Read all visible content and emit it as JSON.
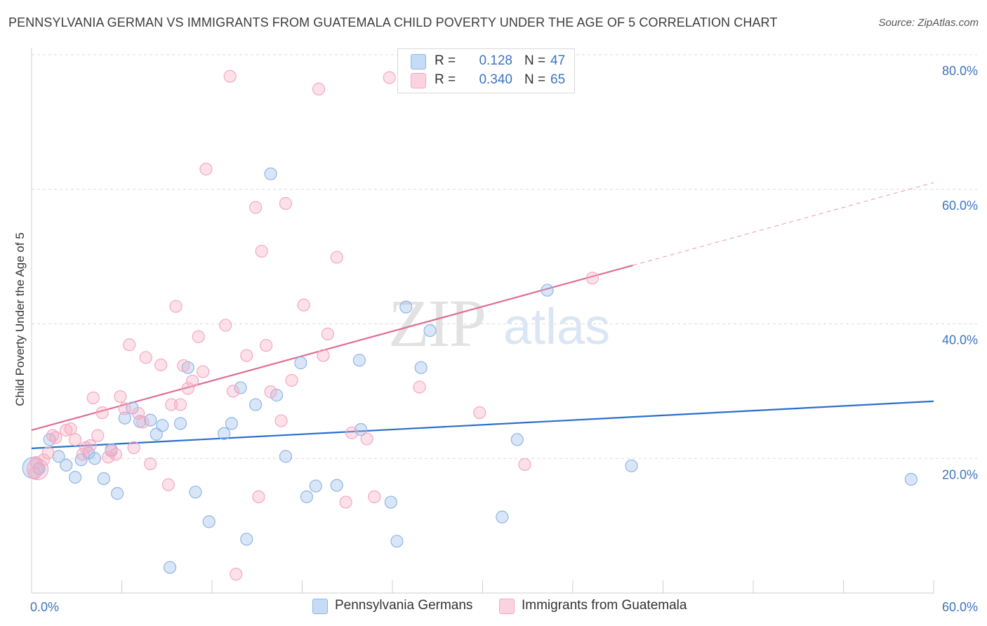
{
  "title": "PENNSYLVANIA GERMAN VS IMMIGRANTS FROM GUATEMALA CHILD POVERTY UNDER THE AGE OF 5 CORRELATION CHART",
  "source": "Source: ZipAtlas.com",
  "watermark": {
    "zip": "ZIP",
    "atlas": "atlas"
  },
  "legend": {
    "rows": [
      {
        "r_label": "R =",
        "r_value": "0.128",
        "n_label": "N =",
        "n_value": "47"
      },
      {
        "r_label": "R =",
        "r_value": "0.340",
        "n_label": "N =",
        "n_value": "65"
      }
    ]
  },
  "chart_data": {
    "type": "scatter",
    "title": "PENNSYLVANIA GERMAN VS IMMIGRANTS FROM GUATEMALA CHILD POVERTY UNDER THE AGE OF 5 CORRELATION CHART",
    "xlabel": "",
    "ylabel": "Child Poverty Under the Age of 5",
    "xlim": [
      0,
      60
    ],
    "ylim": [
      0,
      80
    ],
    "x_tick_labels": [
      "0.0%",
      "60.0%"
    ],
    "y_ticks": [
      {
        "value": 20,
        "label": "20.0%"
      },
      {
        "value": 40,
        "label": "40.0%"
      },
      {
        "value": 60,
        "label": "60.0%"
      },
      {
        "value": 80,
        "label": "80.0%"
      }
    ],
    "grid": true,
    "series": [
      {
        "name": "Pennsylvania Germans",
        "color": "#8fb6e8",
        "line_color": "#2a6fcb",
        "R": 0.128,
        "N": 47,
        "trend": {
          "x": [
            0,
            60
          ],
          "y": [
            21.5,
            28.5
          ]
        },
        "points": [
          [
            0.5,
            18.5
          ],
          [
            1.2,
            22.8
          ],
          [
            1.8,
            20.3
          ],
          [
            2.3,
            19.0
          ],
          [
            2.9,
            17.2
          ],
          [
            3.3,
            19.8
          ],
          [
            3.8,
            20.8
          ],
          [
            4.2,
            20.0
          ],
          [
            4.8,
            17.0
          ],
          [
            5.3,
            21.3
          ],
          [
            5.7,
            14.8
          ],
          [
            6.2,
            26.0
          ],
          [
            6.7,
            27.5
          ],
          [
            7.2,
            25.5
          ],
          [
            7.9,
            25.7
          ],
          [
            8.3,
            23.6
          ],
          [
            8.7,
            24.9
          ],
          [
            9.2,
            3.8
          ],
          [
            9.9,
            25.2
          ],
          [
            10.4,
            33.5
          ],
          [
            10.9,
            15.0
          ],
          [
            11.8,
            10.6
          ],
          [
            12.8,
            23.7
          ],
          [
            13.3,
            25.2
          ],
          [
            13.9,
            30.5
          ],
          [
            14.3,
            8.0
          ],
          [
            14.9,
            28.0
          ],
          [
            15.9,
            62.3
          ],
          [
            16.3,
            29.4
          ],
          [
            16.9,
            20.3
          ],
          [
            17.9,
            34.2
          ],
          [
            18.3,
            14.3
          ],
          [
            18.9,
            15.9
          ],
          [
            20.3,
            16.0
          ],
          [
            21.9,
            24.3
          ],
          [
            21.8,
            34.6
          ],
          [
            23.9,
            13.5
          ],
          [
            24.3,
            7.7
          ],
          [
            24.9,
            42.5
          ],
          [
            25.9,
            33.5
          ],
          [
            26.5,
            39.0
          ],
          [
            31.3,
            11.3
          ],
          [
            32.3,
            22.8
          ],
          [
            34.3,
            45.0
          ],
          [
            39.9,
            18.9
          ],
          [
            58.5,
            16.9
          ],
          [
            0.1,
            18.6
          ]
        ]
      },
      {
        "name": "Immigrants from Guatemala",
        "color": "#f5a8c0",
        "line_color": "#e06c94",
        "R": 0.34,
        "N": 65,
        "trend": {
          "x": [
            0,
            40
          ],
          "y": [
            24.2,
            48.7
          ]
        },
        "trend_ext": {
          "x": [
            40,
            60
          ],
          "y": [
            48.7,
            61.0
          ]
        },
        "points": [
          [
            0.3,
            19.4
          ],
          [
            0.8,
            19.8
          ],
          [
            1.1,
            20.8
          ],
          [
            1.4,
            23.4
          ],
          [
            1.6,
            23.1
          ],
          [
            2.3,
            24.2
          ],
          [
            2.6,
            24.4
          ],
          [
            2.9,
            22.8
          ],
          [
            3.4,
            20.6
          ],
          [
            3.6,
            21.6
          ],
          [
            3.9,
            21.9
          ],
          [
            4.1,
            29.0
          ],
          [
            4.4,
            23.4
          ],
          [
            4.7,
            26.8
          ],
          [
            5.1,
            20.2
          ],
          [
            5.3,
            21.1
          ],
          [
            5.6,
            20.6
          ],
          [
            5.9,
            29.2
          ],
          [
            6.2,
            27.4
          ],
          [
            6.5,
            36.9
          ],
          [
            6.8,
            21.6
          ],
          [
            7.1,
            26.7
          ],
          [
            7.4,
            25.4
          ],
          [
            7.6,
            35.0
          ],
          [
            7.9,
            19.2
          ],
          [
            8.6,
            33.9
          ],
          [
            9.1,
            16.1
          ],
          [
            9.3,
            28.0
          ],
          [
            9.6,
            42.6
          ],
          [
            9.9,
            28.0
          ],
          [
            10.1,
            33.8
          ],
          [
            10.4,
            30.4
          ],
          [
            10.7,
            31.5
          ],
          [
            11.1,
            38.1
          ],
          [
            11.4,
            32.9
          ],
          [
            11.6,
            63.0
          ],
          [
            12.9,
            39.8
          ],
          [
            13.2,
            76.8
          ],
          [
            13.4,
            30.0
          ],
          [
            13.6,
            2.8
          ],
          [
            14.3,
            35.3
          ],
          [
            14.9,
            57.3
          ],
          [
            15.1,
            14.3
          ],
          [
            15.3,
            50.8
          ],
          [
            15.6,
            36.8
          ],
          [
            15.9,
            29.9
          ],
          [
            16.6,
            25.6
          ],
          [
            16.9,
            57.9
          ],
          [
            17.3,
            31.6
          ],
          [
            18.1,
            42.8
          ],
          [
            19.1,
            74.9
          ],
          [
            19.4,
            35.3
          ],
          [
            19.7,
            38.5
          ],
          [
            20.3,
            49.9
          ],
          [
            20.9,
            13.5
          ],
          [
            21.3,
            23.8
          ],
          [
            22.3,
            22.9
          ],
          [
            22.8,
            14.3
          ],
          [
            23.8,
            76.6
          ],
          [
            25.8,
            30.6
          ],
          [
            29.8,
            26.8
          ],
          [
            32.8,
            19.1
          ],
          [
            37.3,
            46.8
          ],
          [
            0.2,
            17.8
          ],
          [
            0.4,
            18.4
          ]
        ]
      }
    ],
    "legend": [
      "Pennsylvania Germans",
      "Immigrants from Guatemala"
    ]
  }
}
